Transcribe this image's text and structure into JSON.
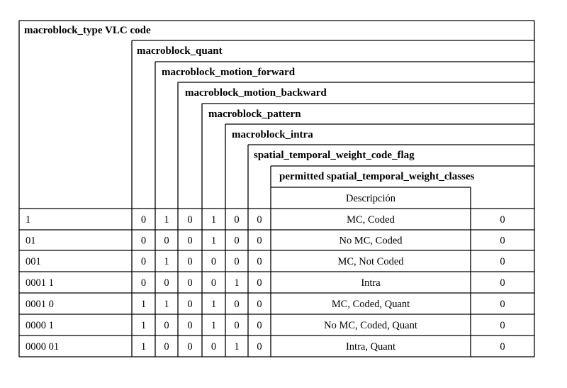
{
  "headers": {
    "vlc_code": "macroblock_type VLC code",
    "quant": "macroblock_quant",
    "motion_forward": "macroblock_motion_forward",
    "motion_backward": "macroblock_motion_backward",
    "pattern": "macroblock_pattern",
    "intra": "macroblock_intra",
    "stwc_flag": "spatial_temporal_weight_code_flag",
    "permitted": "permitted spatial_temporal_weight_classes",
    "description": "Descripción"
  },
  "rows": [
    {
      "code": "1",
      "quant": "0",
      "fwd": "1",
      "bwd": "0",
      "pattern": "1",
      "intra": "0",
      "stwc": "0",
      "desc": "MC, Coded",
      "permitted": "0"
    },
    {
      "code": "01",
      "quant": "0",
      "fwd": "0",
      "bwd": "0",
      "pattern": "1",
      "intra": "0",
      "stwc": "0",
      "desc": "No MC, Coded",
      "permitted": "0"
    },
    {
      "code": "001",
      "quant": "0",
      "fwd": "1",
      "bwd": "0",
      "pattern": "0",
      "intra": "0",
      "stwc": "0",
      "desc": "MC, Not Coded",
      "permitted": "0"
    },
    {
      "code": "0001 1",
      "quant": "0",
      "fwd": "0",
      "bwd": "0",
      "pattern": "0",
      "intra": "1",
      "stwc": "0",
      "desc": "Intra",
      "permitted": "0"
    },
    {
      "code": "0001 0",
      "quant": "1",
      "fwd": "1",
      "bwd": "0",
      "pattern": "1",
      "intra": "0",
      "stwc": "0",
      "desc": "MC, Coded, Quant",
      "permitted": "0"
    },
    {
      "code": "0000 1",
      "quant": "1",
      "fwd": "0",
      "bwd": "0",
      "pattern": "1",
      "intra": "0",
      "stwc": "0",
      "desc": "No MC, Coded, Quant",
      "permitted": "0"
    },
    {
      "code": "0000 01",
      "quant": "1",
      "fwd": "0",
      "bwd": "0",
      "pattern": "0",
      "intra": "1",
      "stwc": "0",
      "desc": "Intra, Quant",
      "permitted": "0"
    }
  ]
}
